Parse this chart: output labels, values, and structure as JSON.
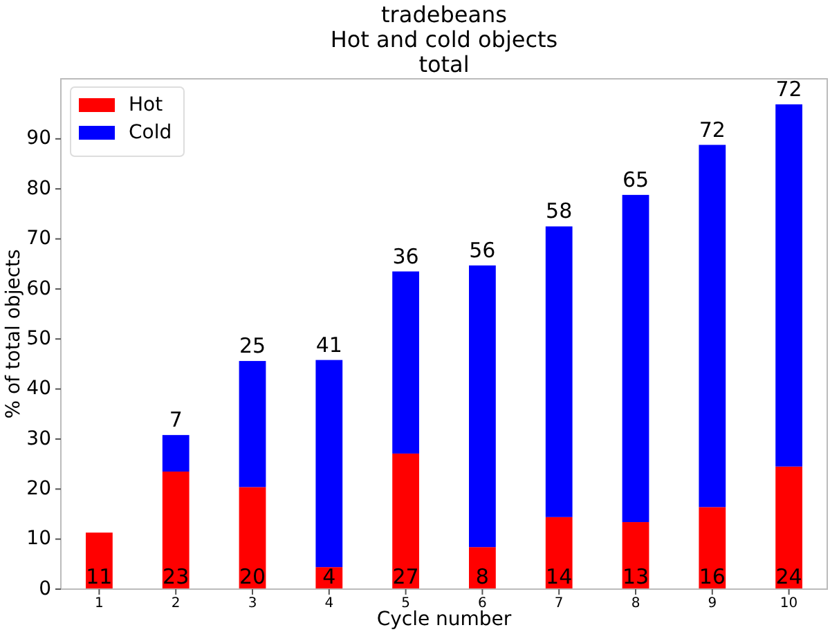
{
  "chart_data": {
    "type": "bar",
    "title": "tradebeans\nHot and cold objects\ntotal",
    "xlabel": "Cycle number",
    "ylabel": "% of total objects",
    "categories": [
      "1",
      "2",
      "3",
      "4",
      "5",
      "6",
      "7",
      "8",
      "9",
      "10"
    ],
    "stacked": true,
    "ylim": [
      0,
      102
    ],
    "yticks": [
      0,
      10,
      20,
      30,
      40,
      50,
      60,
      70,
      80,
      90
    ],
    "legend": "top left",
    "grid": false,
    "series": [
      {
        "name": "Hot",
        "color": "#ff0000",
        "values": [
          11.3,
          23.5,
          20.4,
          4.4,
          27.1,
          8.4,
          14.4,
          13.4,
          16.4,
          24.5
        ],
        "value_labels": [
          "11",
          "23",
          "20",
          "4",
          "27",
          "8",
          "14",
          "13",
          "16",
          "24"
        ]
      },
      {
        "name": "Cold",
        "color": "#0000ff",
        "values": [
          0,
          7.3,
          25.2,
          41.4,
          36.4,
          56.3,
          58.1,
          65.4,
          72.4,
          72.4
        ],
        "value_labels": [
          null,
          "7",
          "25",
          "41",
          "36",
          "56",
          "58",
          "65",
          "72",
          "72"
        ]
      }
    ]
  }
}
